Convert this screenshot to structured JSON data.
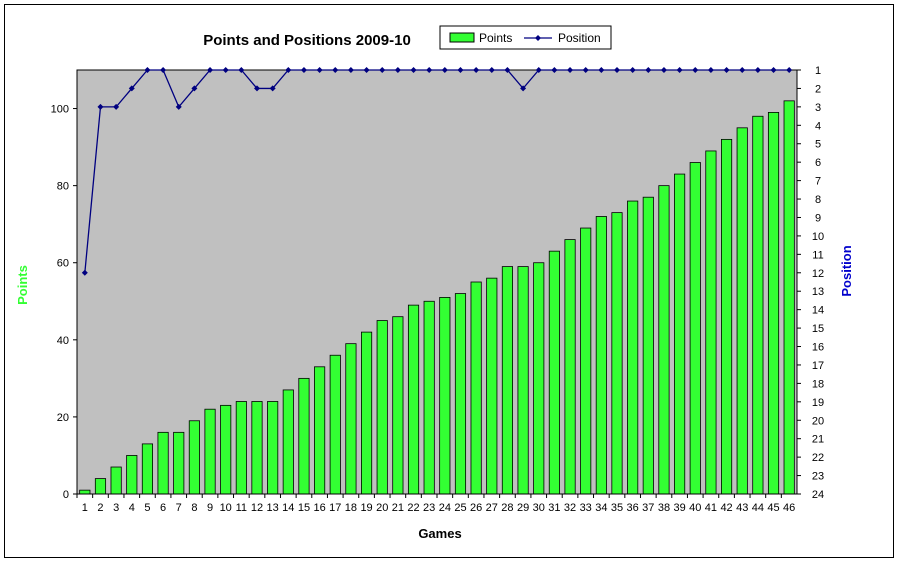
{
  "chart_data": {
    "type": "bar",
    "title": "Points and Positions 2009-10",
    "xlabel": "Games",
    "ylabel": "Points",
    "y2label": "Position",
    "ylim": [
      0,
      110
    ],
    "y2lim": [
      1,
      24
    ],
    "y2_inverted": true,
    "y_ticks": [
      0,
      20,
      40,
      60,
      80,
      100
    ],
    "y2_ticks": [
      1,
      2,
      3,
      4,
      5,
      6,
      7,
      8,
      9,
      10,
      11,
      12,
      13,
      14,
      15,
      16,
      17,
      18,
      19,
      20,
      21,
      22,
      23,
      24
    ],
    "categories": [
      "1",
      "2",
      "3",
      "4",
      "5",
      "6",
      "7",
      "8",
      "9",
      "10",
      "11",
      "12",
      "13",
      "14",
      "15",
      "16",
      "17",
      "18",
      "19",
      "20",
      "21",
      "22",
      "23",
      "24",
      "25",
      "26",
      "27",
      "28",
      "29",
      "30",
      "31",
      "32",
      "33",
      "34",
      "35",
      "36",
      "37",
      "38",
      "39",
      "40",
      "41",
      "42",
      "43",
      "44",
      "45",
      "46"
    ],
    "series": [
      {
        "name": "Points",
        "kind": "bar",
        "color": "#33ff33",
        "values": [
          1,
          4,
          7,
          10,
          13,
          16,
          16,
          19,
          22,
          23,
          24,
          24,
          24,
          27,
          30,
          33,
          36,
          39,
          42,
          45,
          46,
          49,
          50,
          51,
          52,
          55,
          56,
          59,
          59,
          60,
          63,
          66,
          69,
          72,
          73,
          76,
          77,
          80,
          83,
          86,
          89,
          92,
          95,
          98,
          99,
          102
        ]
      },
      {
        "name": "Position",
        "kind": "line",
        "color": "#000080",
        "axis": "right",
        "values": [
          12,
          3,
          3,
          2,
          1,
          1,
          3,
          2,
          1,
          1,
          1,
          2,
          2,
          1,
          1,
          1,
          1,
          1,
          1,
          1,
          1,
          1,
          1,
          1,
          1,
          1,
          1,
          1,
          2,
          1,
          1,
          1,
          1,
          1,
          1,
          1,
          1,
          1,
          1,
          1,
          1,
          1,
          1,
          1,
          1,
          1
        ]
      }
    ],
    "grid": false,
    "legend": "top",
    "plot_background": "#c0c0c0",
    "points_axis_color": "#33ff33",
    "position_axis_color": "#0000cc"
  }
}
